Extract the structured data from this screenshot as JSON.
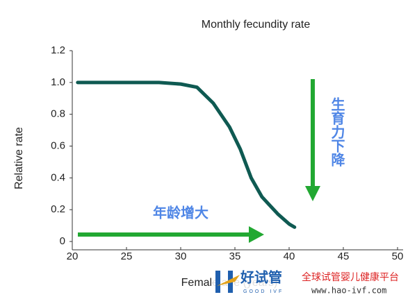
{
  "chart_data": {
    "type": "line",
    "title": "Monthly fecundity rate",
    "x_label": "Female age (years)",
    "y_label": "Relative rate",
    "x": [
      20.5,
      25,
      28,
      30,
      31.5,
      33,
      34.5,
      35.5,
      36.5,
      37.5,
      39,
      40,
      40.5
    ],
    "values": [
      1.0,
      1.0,
      1.0,
      0.99,
      0.97,
      0.87,
      0.72,
      0.58,
      0.4,
      0.28,
      0.17,
      0.11,
      0.09
    ],
    "color": "#0f5a52",
    "xlim": [
      20,
      50
    ],
    "xticks": [
      20,
      25,
      30,
      35,
      40,
      45,
      50
    ],
    "ylim": [
      0,
      1.2
    ],
    "yticks": [
      0,
      0.2,
      0.4,
      0.6,
      0.8,
      {
        "value": 1,
        "label": "1.0"
      },
      1.2
    ],
    "annotations": [
      "年龄增大",
      "生育力下降"
    ]
  },
  "watermark": {
    "brand": "好试管",
    "brand_en": "GOOD IVF",
    "slogan": "全球试管婴儿健康平台",
    "url": "www.hao-ivf.com"
  }
}
